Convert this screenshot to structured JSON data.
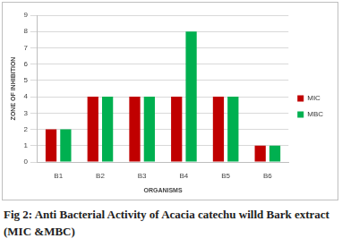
{
  "chart_data": {
    "type": "bar",
    "title": "Fig 2: Anti Bacterial Activity of Acacia catechu willd Bark extract (MIC &MBC)",
    "x_label": "ORGANISMS",
    "y_label": "ZONE OF INHIBITION",
    "categories": [
      "B1",
      "B2",
      "B3",
      "B4",
      "B5",
      "B6"
    ],
    "series": [
      {
        "name": "MIC",
        "color": "#c00000",
        "values": [
          2,
          4,
          4,
          4,
          4,
          1
        ]
      },
      {
        "name": "MBC",
        "color": "#00b050",
        "values": [
          2,
          4,
          4,
          8,
          4,
          1
        ]
      }
    ],
    "ylim": [
      0,
      9
    ],
    "yticks": [
      0,
      1,
      2,
      3,
      4,
      5,
      6,
      7,
      8,
      9
    ],
    "grid": true,
    "legend": "right"
  }
}
